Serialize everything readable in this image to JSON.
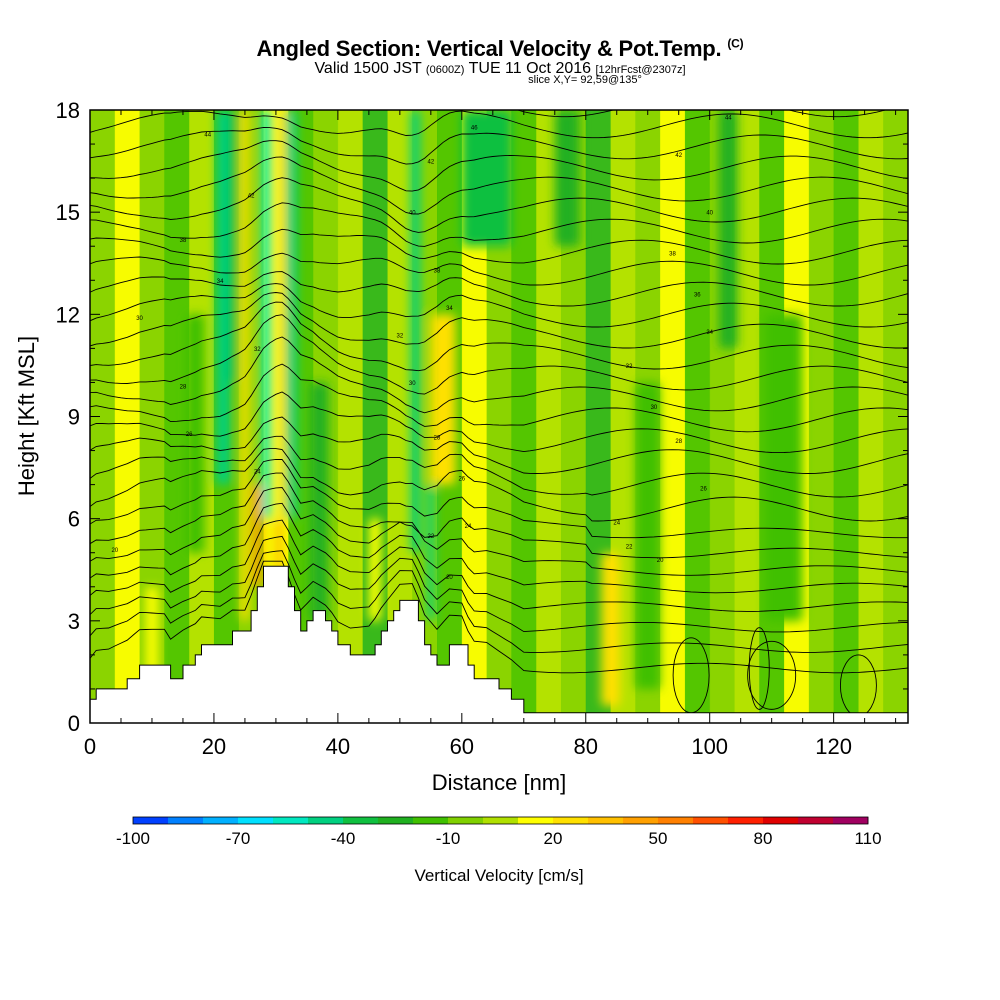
{
  "chart_data": {
    "type": "heatmap",
    "title": "Angled Section: Vertical Velocity & Pot.Temp.",
    "title_mark": "(C)",
    "subtitle_valid": "Valid 1500 JST",
    "subtitle_utc": "(0600Z)",
    "subtitle_date": "TUE 11 Oct 2016",
    "subtitle_fcst": "[12hrFcst@2307z]",
    "slice_label": "slice X,Y= 92,59@135°",
    "xlabel": "Distance [nm]",
    "ylabel": "Height [Kft MSL]",
    "xlim": [
      0,
      132
    ],
    "ylim": [
      0,
      18
    ],
    "x_ticks": [
      0,
      20,
      40,
      60,
      80,
      100,
      120
    ],
    "y_ticks": [
      0,
      3,
      6,
      9,
      12,
      15,
      18
    ],
    "colorbar": {
      "label": "Vertical Velocity [cm/s]",
      "min": -100,
      "max": 110,
      "step": 10,
      "tick_labels": [
        "-100",
        "-70",
        "-40",
        "-10",
        "20",
        "50",
        "80",
        "110"
      ],
      "colors": [
        "#0000ff",
        "#0040ff",
        "#0080ff",
        "#00b0ff",
        "#00e0ff",
        "#00e8c0",
        "#00d080",
        "#10c040",
        "#20b020",
        "#40c000",
        "#80d000",
        "#b0e000",
        "#ffff00",
        "#ffe000",
        "#ffc000",
        "#ffa000",
        "#ff8000",
        "#ff5000",
        "#ff2000",
        "#e00000",
        "#c00030",
        "#a00060",
        "#800080"
      ]
    },
    "terrain": [
      [
        0,
        0.7
      ],
      [
        1,
        1.0
      ],
      [
        3,
        1.0
      ],
      [
        6,
        1.3
      ],
      [
        8,
        1.7
      ],
      [
        12,
        1.7
      ],
      [
        13,
        1.3
      ],
      [
        15,
        1.7
      ],
      [
        17,
        2.0
      ],
      [
        18,
        2.3
      ],
      [
        21,
        2.3
      ],
      [
        23,
        2.7
      ],
      [
        25,
        2.7
      ],
      [
        26,
        3.3
      ],
      [
        27,
        4.0
      ],
      [
        28,
        4.6
      ],
      [
        31,
        4.6
      ],
      [
        32,
        4.0
      ],
      [
        33,
        3.3
      ],
      [
        34,
        2.7
      ],
      [
        35,
        3.0
      ],
      [
        36,
        3.3
      ],
      [
        38,
        3.0
      ],
      [
        39,
        2.7
      ],
      [
        40,
        2.3
      ],
      [
        42,
        2.0
      ],
      [
        45,
        2.0
      ],
      [
        46,
        2.3
      ],
      [
        47,
        2.7
      ],
      [
        48,
        3.0
      ],
      [
        49,
        3.3
      ],
      [
        50,
        3.6
      ],
      [
        52,
        3.6
      ],
      [
        53,
        3.0
      ],
      [
        54,
        2.3
      ],
      [
        55,
        2.0
      ],
      [
        56,
        1.7
      ],
      [
        58,
        2.3
      ],
      [
        60,
        2.3
      ],
      [
        61,
        1.7
      ],
      [
        62,
        1.3
      ],
      [
        64,
        1.3
      ],
      [
        66,
        1.0
      ],
      [
        68,
        0.7
      ],
      [
        70,
        0.3
      ],
      [
        72,
        0.3
      ],
      [
        132,
        0.3
      ]
    ],
    "velocity_features": [
      {
        "x": 21.5,
        "width": 2.2,
        "zmin": 7,
        "zmax": 18,
        "value": -45
      },
      {
        "x": 23,
        "width": 1.2,
        "zmin": 10,
        "zmax": 18,
        "value": -30
      },
      {
        "x": 28.5,
        "width": 1.5,
        "zmin": 6,
        "zmax": 18,
        "value": -55
      },
      {
        "x": 32.5,
        "width": 1.8,
        "zmin": 6,
        "zmax": 18,
        "value": -45
      },
      {
        "x": 52.5,
        "width": 1.5,
        "zmin": 5,
        "zmax": 18,
        "value": -45
      },
      {
        "x": 55,
        "width": 1.2,
        "zmin": 3,
        "zmax": 7,
        "value": -40
      },
      {
        "x": 64,
        "width": 8,
        "zmin": 14,
        "zmax": 18,
        "value": -30
      },
      {
        "x": 77,
        "width": 4,
        "zmin": 14,
        "zmax": 18,
        "value": -20
      },
      {
        "x": 103,
        "width": 3,
        "zmin": 11,
        "zmax": 18,
        "value": -20
      },
      {
        "x": 17,
        "width": 3,
        "zmin": 5,
        "zmax": 12,
        "value": -15
      },
      {
        "x": 37,
        "width": 3,
        "zmin": 3,
        "zmax": 10,
        "value": -20
      },
      {
        "x": 90,
        "width": 4,
        "zmin": 1,
        "zmax": 10,
        "value": -15
      },
      {
        "x": 112,
        "width": 6,
        "zmin": 3,
        "zmax": 12,
        "value": -15
      },
      {
        "x": 27,
        "width": 1.5,
        "zmin": 4,
        "zmax": 7,
        "value": 50
      },
      {
        "x": 30.5,
        "width": 1.2,
        "zmin": 4.5,
        "zmax": 6,
        "value": 40
      },
      {
        "x": 25,
        "width": 1.3,
        "zmin": 3,
        "zmax": 18,
        "value": 25
      },
      {
        "x": 31,
        "width": 1.0,
        "zmin": 6,
        "zmax": 18,
        "value": 25
      },
      {
        "x": 57,
        "width": 4,
        "zmin": 7,
        "zmax": 12,
        "value": 25
      },
      {
        "x": 83.5,
        "width": 1.0,
        "zmin": 1,
        "zmax": 4.5,
        "value": 55
      },
      {
        "x": 84,
        "width": 3,
        "zmin": 0.5,
        "zmax": 5,
        "value": 25
      },
      {
        "x": 10,
        "width": 2,
        "zmin": 1,
        "zmax": 4,
        "value": 20
      },
      {
        "x": 46,
        "width": 2,
        "zmin": 3,
        "zmax": 6,
        "value": 20
      }
    ],
    "theta_labels": [
      {
        "x": 19,
        "z": 17.3,
        "text": "44"
      },
      {
        "x": 26,
        "z": 15.5,
        "text": "42"
      },
      {
        "x": 15,
        "z": 14.2,
        "text": "38"
      },
      {
        "x": 21,
        "z": 13.0,
        "text": "34"
      },
      {
        "x": 8,
        "z": 11.9,
        "text": "30"
      },
      {
        "x": 27,
        "z": 11.0,
        "text": "32"
      },
      {
        "x": 15,
        "z": 9.9,
        "text": "28"
      },
      {
        "x": 16,
        "z": 8.5,
        "text": "26"
      },
      {
        "x": 27,
        "z": 7.4,
        "text": "24"
      },
      {
        "x": 4,
        "z": 5.1,
        "text": "20"
      },
      {
        "x": 62,
        "z": 17.5,
        "text": "46"
      },
      {
        "x": 55,
        "z": 16.5,
        "text": "42"
      },
      {
        "x": 52,
        "z": 15.0,
        "text": "40"
      },
      {
        "x": 56,
        "z": 13.3,
        "text": "38"
      },
      {
        "x": 58,
        "z": 12.2,
        "text": "34"
      },
      {
        "x": 50,
        "z": 11.4,
        "text": "32"
      },
      {
        "x": 52,
        "z": 10.0,
        "text": "30"
      },
      {
        "x": 56,
        "z": 8.4,
        "text": "28"
      },
      {
        "x": 60,
        "z": 7.2,
        "text": "26"
      },
      {
        "x": 61,
        "z": 5.8,
        "text": "24"
      },
      {
        "x": 55,
        "z": 5.5,
        "text": "22"
      },
      {
        "x": 58,
        "z": 4.3,
        "text": "20"
      },
      {
        "x": 103,
        "z": 17.8,
        "text": "44"
      },
      {
        "x": 95,
        "z": 16.7,
        "text": "42"
      },
      {
        "x": 100,
        "z": 15.0,
        "text": "40"
      },
      {
        "x": 94,
        "z": 13.8,
        "text": "38"
      },
      {
        "x": 98,
        "z": 12.6,
        "text": "36"
      },
      {
        "x": 100,
        "z": 11.5,
        "text": "34"
      },
      {
        "x": 87,
        "z": 10.5,
        "text": "32"
      },
      {
        "x": 91,
        "z": 9.3,
        "text": "30"
      },
      {
        "x": 95,
        "z": 8.3,
        "text": "28"
      },
      {
        "x": 99,
        "z": 6.9,
        "text": "26"
      },
      {
        "x": 85,
        "z": 5.9,
        "text": "24"
      },
      {
        "x": 87,
        "z": 5.2,
        "text": "22"
      },
      {
        "x": 92,
        "z": 4.8,
        "text": "20"
      }
    ]
  }
}
